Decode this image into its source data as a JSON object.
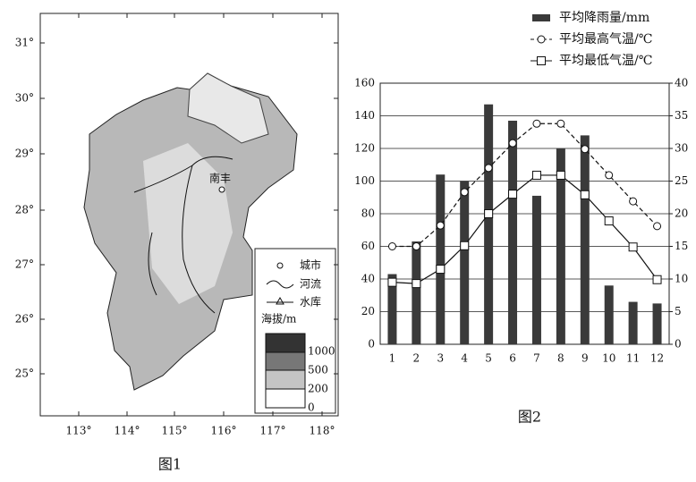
{
  "map": {
    "caption": "图1",
    "lat_labels": [
      "31°",
      "30°",
      "29°",
      "28°",
      "27°",
      "26°",
      "25°"
    ],
    "lon_labels": [
      "113°",
      "114°",
      "115°",
      "116°",
      "117°",
      "118°"
    ],
    "city": "南丰",
    "legend": {
      "city": "城市",
      "river": "河流",
      "reservoir": "水库",
      "elevation_title": "海拔/m",
      "elevation_levels": [
        1000,
        500,
        200,
        0
      ]
    }
  },
  "chart_data": {
    "type": "bar",
    "caption": "图2",
    "categories": [
      "1",
      "2",
      "3",
      "4",
      "5",
      "6",
      "7",
      "8",
      "9",
      "10",
      "11",
      "12"
    ],
    "series": [
      {
        "name": "平均降雨量/mm",
        "type": "bar",
        "color": "#3a3a3a",
        "values": [
          43,
          63,
          104,
          100,
          147,
          137,
          91,
          120,
          128,
          36,
          26,
          25
        ]
      },
      {
        "name": "平均最高气温/℃",
        "type": "line",
        "dash": true,
        "marker": "circle",
        "color": "#111",
        "axis": "y2",
        "values": [
          15,
          15,
          18.2,
          23.3,
          27,
          30.8,
          33.8,
          33.8,
          29.9,
          25.9,
          21.9,
          18.1
        ]
      },
      {
        "name": "平均最低气温/℃",
        "type": "line",
        "dash": false,
        "marker": "square",
        "color": "#111",
        "axis": "y2",
        "values": [
          9.5,
          9.3,
          11.5,
          15.1,
          20,
          23,
          25.9,
          25.9,
          22.9,
          18.9,
          14.9,
          9.9
        ]
      }
    ],
    "ylim": [
      0,
      160
    ],
    "yticks": [
      0,
      20,
      40,
      60,
      80,
      100,
      120,
      140,
      160
    ],
    "y2lim": [
      0,
      40
    ],
    "y2ticks": [
      0,
      5,
      10,
      15,
      20,
      25,
      30,
      35,
      40
    ],
    "grid": true
  }
}
